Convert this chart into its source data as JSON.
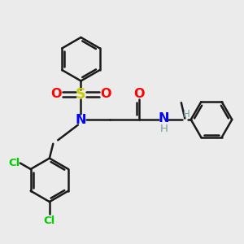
{
  "background_color": "#ebebeb",
  "bond_color": "#1a1a1a",
  "bond_width": 1.8,
  "atom_colors": {
    "N": "#0000ff",
    "O": "#ff0000",
    "S": "#cccc00",
    "Cl": "#00cc00",
    "H": "#7a9a9a",
    "C": "#1a1a1a"
  },
  "font_size": 9.5,
  "fig_size": [
    3.0,
    3.0
  ],
  "dpi": 100,
  "xlim": [
    0,
    10
  ],
  "ylim": [
    0,
    10
  ]
}
